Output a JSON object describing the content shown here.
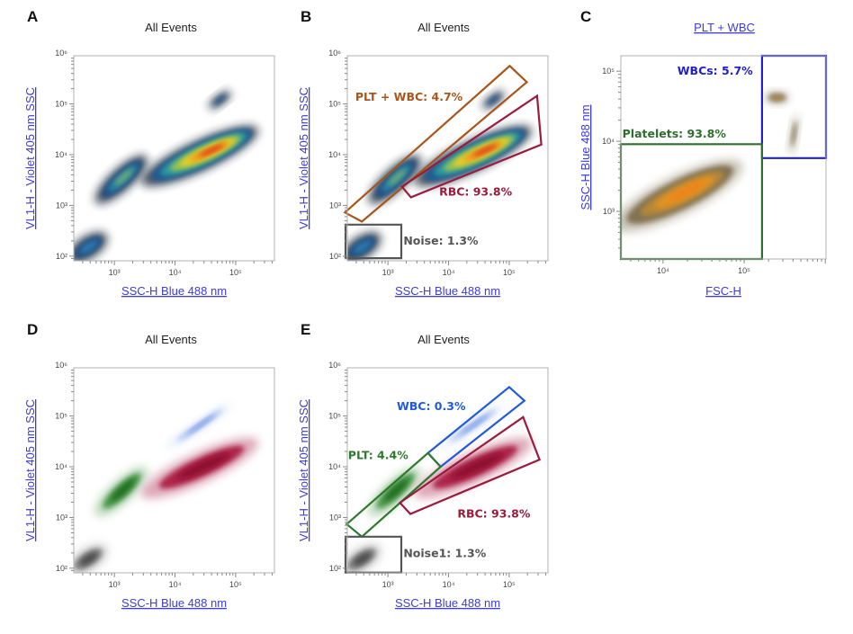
{
  "chart_data": [
    {
      "id": "A",
      "type": "scatter",
      "letter": "A",
      "title": "All Events",
      "xlabel": "SSC-H Blue 488 nm",
      "ylabel": "VL1-H - Violet 405 nm SSC",
      "xscale": "log",
      "yscale": "log",
      "xlim": [
        214,
        436000
      ],
      "ylim": [
        81,
        890000
      ],
      "xticks": [
        {
          "v": 1000,
          "label": "10³"
        },
        {
          "v": 10000,
          "label": "10⁴"
        },
        {
          "v": 100000,
          "label": "10⁵"
        }
      ],
      "yticks": [
        {
          "v": 100,
          "label": "10²"
        },
        {
          "v": 1000,
          "label": "10³"
        },
        {
          "v": 10000,
          "label": "10⁴"
        },
        {
          "v": 100000,
          "label": "10⁵"
        },
        {
          "v": 1000000,
          "label": "10⁶"
        }
      ],
      "color_mode": "density",
      "populations": [
        {
          "name": "noise",
          "from": [
            220,
            100
          ],
          "to": [
            600,
            220
          ],
          "spread": 0.22,
          "colors": [
            "#0d1b2a",
            "#1c4f8a",
            "#2f7fb0"
          ]
        },
        {
          "name": "plt",
          "from": [
            600,
            1400
          ],
          "to": [
            2800,
            7500
          ],
          "spread": 0.22,
          "colors": [
            "#0d1b2a",
            "#1c4f8a",
            "#2b8aa8",
            "#7fb36a"
          ]
        },
        {
          "name": "wbc",
          "from": [
            40000,
            90000
          ],
          "to": [
            75000,
            160000
          ],
          "spread": 0.1,
          "colors": [
            "#0d1b2a",
            "#1c4f8a"
          ]
        },
        {
          "name": "rbc",
          "from": [
            3800,
            3300
          ],
          "to": [
            170000,
            27000
          ],
          "spread": 0.3,
          "colors": [
            "#0d1b2a",
            "#1c5a9a",
            "#2ea0a0",
            "#a8c84a",
            "#f5d020",
            "#f08a1a",
            "#d8201a"
          ]
        }
      ],
      "gates": []
    },
    {
      "id": "B",
      "type": "scatter",
      "letter": "B",
      "title": "All Events",
      "xlabel": "SSC-H Blue 488 nm",
      "ylabel": "VL1-H - Violet 405 nm SSC",
      "xscale": "log",
      "yscale": "log",
      "xlim": [
        214,
        436000
      ],
      "ylim": [
        81,
        890000
      ],
      "xticks": [
        {
          "v": 1000,
          "label": "10³"
        },
        {
          "v": 10000,
          "label": "10⁴"
        },
        {
          "v": 100000,
          "label": "10⁵"
        }
      ],
      "yticks": [
        {
          "v": 100,
          "label": "10²"
        },
        {
          "v": 1000,
          "label": "10³"
        },
        {
          "v": 10000,
          "label": "10⁴"
        },
        {
          "v": 100000,
          "label": "10⁵"
        },
        {
          "v": 1000000,
          "label": "10⁶"
        }
      ],
      "color_mode": "density",
      "populations": [
        {
          "name": "noise",
          "from": [
            220,
            100
          ],
          "to": [
            600,
            220
          ],
          "spread": 0.22,
          "colors": [
            "#0d1b2a",
            "#1c4f8a",
            "#2f7fb0"
          ]
        },
        {
          "name": "plt",
          "from": [
            600,
            1400
          ],
          "to": [
            2800,
            7500
          ],
          "spread": 0.22,
          "colors": [
            "#0d1b2a",
            "#1c4f8a",
            "#2b8aa8",
            "#7fb36a"
          ]
        },
        {
          "name": "wbc",
          "from": [
            40000,
            90000
          ],
          "to": [
            75000,
            160000
          ],
          "spread": 0.1,
          "colors": [
            "#0d1b2a",
            "#1c4f8a"
          ]
        },
        {
          "name": "rbc",
          "from": [
            3800,
            3300
          ],
          "to": [
            170000,
            27000
          ],
          "spread": 0.3,
          "colors": [
            "#0d1b2a",
            "#1c5a9a",
            "#2ea0a0",
            "#a8c84a",
            "#f5d020",
            "#f08a1a",
            "#d8201a"
          ]
        }
      ],
      "gates": [
        {
          "label": "PLT + WBC: 4.7%",
          "color": "#a8561c",
          "points": [
            [
              195,
              725
            ],
            [
              372,
              479
            ],
            [
              195000,
              269000
            ],
            [
              102000,
              562000
            ]
          ],
          "label_at": [
            290,
            115000
          ]
        },
        {
          "label": "RBC: 93.8%",
          "color": "#9b1b3d",
          "points": [
            [
              1700,
              2340
            ],
            [
              2400,
              1445
            ],
            [
              339000,
              15800
            ],
            [
              288000,
              144000
            ]
          ],
          "label_at": [
            7000,
            1550
          ]
        },
        {
          "label": "Noise: 1.3%",
          "color": "#555555",
          "points": [
            [
              200,
              417
            ],
            [
              1660,
              417
            ],
            [
              1660,
              91
            ],
            [
              200,
              91
            ]
          ],
          "label_at": [
            1800,
            170
          ]
        }
      ]
    },
    {
      "id": "C",
      "type": "scatter",
      "letter": "C",
      "title": "PLT + WBC",
      "xlabel": "FSC-H",
      "ylabel": "SSC-H Blue 488 nm",
      "xscale": "log",
      "yscale": "log",
      "xlim": [
        3020,
        1020000
      ],
      "ylim": [
        209,
        166000
      ],
      "xticks": [
        {
          "v": 10000,
          "label": "10⁴"
        },
        {
          "v": 100000,
          "label": "10⁵"
        }
      ],
      "yticks": [
        {
          "v": 1000,
          "label": "10³"
        },
        {
          "v": 10000,
          "label": "10⁴"
        },
        {
          "v": 100000,
          "label": "10⁵"
        }
      ],
      "color_mode": "density",
      "populations": [
        {
          "name": "platelets",
          "from": [
            3300,
            700
          ],
          "to": [
            70000,
            4000
          ],
          "spread": 0.28,
          "colors": [
            "#b8b0a0",
            "#7a6a4a",
            "#b98a3a",
            "#e8941e",
            "#f0801a"
          ]
        },
        {
          "name": "wbc-cluster",
          "from": [
            200000,
            42000
          ],
          "to": [
            320000,
            42000
          ],
          "spread": 0.08,
          "colors": [
            "#9a8e78",
            "#7a6a4a",
            "#c79640"
          ]
        },
        {
          "name": "wbc-tail",
          "from": [
            380000,
            7000
          ],
          "to": [
            440000,
            22000
          ],
          "spread": 0.05,
          "colors": [
            "#a89e88",
            "#7a6a4a"
          ]
        }
      ],
      "gates": [
        {
          "label": "WBCs: 5.7%",
          "color": "#2020cc",
          "points": [
            [
              166000,
              5750
            ],
            [
              1020000,
              5750
            ],
            [
              1020000,
              166000
            ],
            [
              166000,
              166000
            ]
          ],
          "label_at": [
            15000,
            89000
          ]
        },
        {
          "label": "Platelets: 93.8%",
          "color": "#2e6e2e",
          "points": [
            [
              3020,
              209
            ],
            [
              166000,
              209
            ],
            [
              166000,
              9100
            ],
            [
              3020,
              9100
            ]
          ],
          "label_at": [
            3150,
            11200
          ]
        }
      ]
    },
    {
      "id": "D",
      "type": "scatter",
      "letter": "D",
      "title": "All Events",
      "xlabel": "SSC-H Blue 488 nm",
      "ylabel": "VL1-H - Violet 405 nm SSC",
      "xscale": "log",
      "yscale": "log",
      "xlim": [
        214,
        436000
      ],
      "ylim": [
        81,
        890000
      ],
      "xticks": [
        {
          "v": 1000,
          "label": "10³"
        },
        {
          "v": 10000,
          "label": "10⁴"
        },
        {
          "v": 100000,
          "label": "10⁵"
        }
      ],
      "yticks": [
        {
          "v": 100,
          "label": "10²"
        },
        {
          "v": 1000,
          "label": "10³"
        },
        {
          "v": 10000,
          "label": "10⁴"
        },
        {
          "v": 100000,
          "label": "10⁵"
        },
        {
          "v": 1000000,
          "label": "10⁶"
        }
      ],
      "color_mode": "population",
      "populations": [
        {
          "name": "noise",
          "from": [
            220,
            100
          ],
          "to": [
            600,
            220
          ],
          "spread": 0.22,
          "colors": [
            "#bdbdbd",
            "#777777",
            "#444444"
          ]
        },
        {
          "name": "plt",
          "from": [
            600,
            1400
          ],
          "to": [
            2800,
            7500
          ],
          "spread": 0.22,
          "colors": [
            "#9ec79e",
            "#3d8f3d",
            "#1f6a1f"
          ]
        },
        {
          "name": "wbc",
          "from": [
            8000,
            25000
          ],
          "to": [
            75000,
            160000
          ],
          "spread": 0.1,
          "colors": [
            "#dde6f8",
            "#a8c0f0",
            "#6d94e6"
          ]
        },
        {
          "name": "rbc",
          "from": [
            3800,
            3300
          ],
          "to": [
            170000,
            27000
          ],
          "spread": 0.3,
          "colors": [
            "#d28aa0",
            "#a8163d",
            "#8c0a2e"
          ]
        }
      ],
      "gates": []
    },
    {
      "id": "E",
      "type": "scatter",
      "letter": "E",
      "title": "All Events",
      "xlabel": "SSC-H Blue 488 nm",
      "ylabel": "VL1-H - Violet 405 nm SSC",
      "xscale": "log",
      "yscale": "log",
      "xlim": [
        214,
        436000
      ],
      "ylim": [
        81,
        890000
      ],
      "xticks": [
        {
          "v": 1000,
          "label": "10³"
        },
        {
          "v": 10000,
          "label": "10⁴"
        },
        {
          "v": 100000,
          "label": "10⁵"
        }
      ],
      "yticks": [
        {
          "v": 100,
          "label": "10²"
        },
        {
          "v": 1000,
          "label": "10³"
        },
        {
          "v": 10000,
          "label": "10⁴"
        },
        {
          "v": 100000,
          "label": "10⁵"
        },
        {
          "v": 1000000,
          "label": "10⁶"
        }
      ],
      "color_mode": "population",
      "populations": [
        {
          "name": "noise",
          "from": [
            220,
            100
          ],
          "to": [
            600,
            220
          ],
          "spread": 0.22,
          "colors": [
            "#bdbdbd",
            "#777777",
            "#444444"
          ]
        },
        {
          "name": "plt",
          "from": [
            600,
            1400
          ],
          "to": [
            2800,
            7500
          ],
          "spread": 0.22,
          "colors": [
            "#9ec79e",
            "#3d8f3d",
            "#1f6a1f"
          ]
        },
        {
          "name": "wbc",
          "from": [
            8000,
            25000
          ],
          "to": [
            75000,
            160000
          ],
          "spread": 0.1,
          "colors": [
            "#dde6f8",
            "#a8c0f0",
            "#6d94e6"
          ]
        },
        {
          "name": "rbc",
          "from": [
            3800,
            3300
          ],
          "to": [
            170000,
            27000
          ],
          "spread": 0.3,
          "colors": [
            "#d28aa0",
            "#a8163d",
            "#8c0a2e"
          ]
        }
      ],
      "gates": [
        {
          "label": "WBC: 0.3%",
          "color": "#1f5ae0",
          "points": [
            [
              4570,
              18600
            ],
            [
              7400,
              10000
            ],
            [
              178000,
              200000
            ],
            [
              100000,
              372000
            ]
          ],
          "label_at": [
            1400,
            130000
          ]
        },
        {
          "label": "PLT: 4.4%",
          "color": "#2d7a2d",
          "points": [
            [
              209,
              741
            ],
            [
              372,
              417
            ],
            [
              7400,
              10000
            ],
            [
              4570,
              18600
            ]
          ],
          "label_at": [
            220,
            14000
          ]
        },
        {
          "label": "RBC: 93.8%",
          "color": "#9b1b3d",
          "points": [
            [
              1580,
              1950
            ],
            [
              2340,
              1175
            ],
            [
              316000,
              13800
            ],
            [
              170000,
              95000
            ]
          ],
          "label_at": [
            14000,
            1000
          ]
        },
        {
          "label": "Noise1: 1.3%",
          "color": "#555555",
          "points": [
            [
              200,
              417
            ],
            [
              1660,
              417
            ],
            [
              1660,
              82
            ],
            [
              200,
              82
            ]
          ],
          "label_at": [
            1800,
            165
          ]
        }
      ]
    }
  ]
}
